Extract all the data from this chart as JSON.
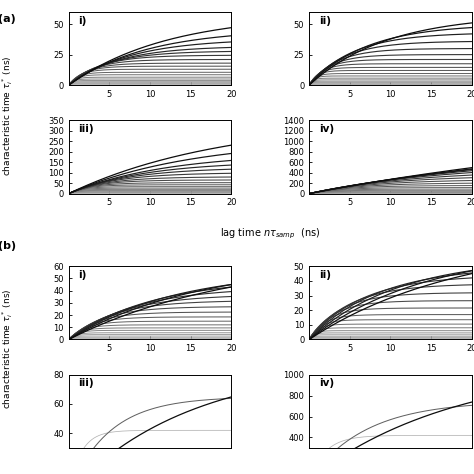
{
  "panel_a": {
    "subplots": [
      {
        "label": "i)",
        "ylim": [
          0,
          60
        ],
        "yticks": [
          0,
          25,
          50
        ],
        "show_xticks": true,
        "n_modes": 20,
        "amplitudes": [
          0.4,
          0.8,
          1.3,
          2.0,
          2.8,
          3.8,
          5.0,
          6.5,
          8.5,
          10.5,
          13.0,
          15.5,
          18.0,
          21.0,
          24.5,
          28.0,
          32.0,
          38.0,
          46.0,
          58.0
        ],
        "timescales": [
          0.15,
          0.18,
          0.22,
          0.28,
          0.35,
          0.45,
          0.55,
          0.7,
          0.9,
          1.1,
          1.4,
          1.8,
          2.3,
          2.9,
          3.7,
          4.8,
          6.0,
          7.5,
          9.5,
          12.0
        ]
      },
      {
        "label": "ii)",
        "ylim": [
          0,
          60
        ],
        "yticks": [
          0,
          25,
          50
        ],
        "show_xticks": true,
        "n_modes": 20,
        "amplitudes": [
          0.3,
          0.6,
          1.0,
          1.6,
          2.3,
          3.2,
          4.3,
          5.7,
          7.5,
          9.5,
          12.0,
          14.5,
          17.5,
          21.0,
          25.0,
          30.0,
          36.0,
          43.0,
          50.0,
          58.0
        ],
        "timescales": [
          0.08,
          0.1,
          0.13,
          0.16,
          0.21,
          0.27,
          0.35,
          0.45,
          0.58,
          0.75,
          0.95,
          1.2,
          1.55,
          2.0,
          2.6,
          3.3,
          4.2,
          5.4,
          7.0,
          9.5
        ]
      },
      {
        "label": "iii)",
        "ylim": [
          0,
          350
        ],
        "yticks": [
          0,
          50,
          100,
          150,
          200,
          250,
          300,
          350
        ],
        "show_xticks": true,
        "n_modes": 20,
        "amplitudes": [
          1.0,
          2.0,
          3.5,
          5.5,
          8.0,
          11.0,
          15.0,
          20.0,
          26.0,
          33.0,
          42.0,
          52.0,
          65.0,
          80.0,
          100.0,
          125.0,
          155.0,
          195.0,
          260.0,
          355.0
        ],
        "timescales": [
          0.2,
          0.25,
          0.32,
          0.4,
          0.5,
          0.65,
          0.82,
          1.05,
          1.35,
          1.7,
          2.2,
          2.8,
          3.6,
          4.6,
          5.8,
          7.5,
          9.5,
          12.0,
          15.0,
          19.0
        ]
      },
      {
        "label": "iv)",
        "ylim": [
          0,
          1400
        ],
        "yticks": [
          0,
          200,
          400,
          600,
          800,
          1000,
          1200,
          1400
        ],
        "show_xticks": true,
        "n_modes": 20,
        "amplitudes": [
          2.0,
          4.5,
          8.0,
          13.0,
          20.0,
          30.0,
          44.0,
          62.0,
          85.0,
          115.0,
          155.0,
          205.0,
          270.0,
          350.0,
          450.0,
          580.0,
          730.0,
          920.0,
          1150.0,
          1500.0
        ],
        "timescales": [
          0.3,
          0.4,
          0.55,
          0.72,
          0.95,
          1.25,
          1.65,
          2.1,
          2.8,
          3.6,
          4.7,
          6.0,
          7.8,
          10.0,
          13.0,
          17.0,
          22.0,
          29.0,
          38.0,
          50.0
        ]
      }
    ],
    "panel_label": "(a)",
    "ylabel": "characteristic time $\\tau_i^*$ (ns)"
  },
  "panel_b": {
    "subplots": [
      {
        "label": "i)",
        "ylim": [
          0,
          60
        ],
        "yticks": [
          0,
          10,
          20,
          30,
          40,
          50,
          60
        ],
        "show_xticks": true,
        "n_modes": 20,
        "amplitudes": [
          0.5,
          1.0,
          1.8,
          2.8,
          4.0,
          5.5,
          7.5,
          9.5,
          12.0,
          15.0,
          18.5,
          22.5,
          27.0,
          32.0,
          37.0,
          43.0,
          50.0,
          57.0,
          63.0,
          68.0
        ],
        "timescales": [
          0.2,
          0.28,
          0.37,
          0.48,
          0.62,
          0.8,
          1.02,
          1.3,
          1.65,
          2.1,
          2.65,
          3.35,
          4.2,
          5.3,
          6.6,
          8.2,
          10.2,
          12.8,
          16.0,
          20.0
        ]
      },
      {
        "label": "ii)",
        "ylim": [
          0,
          50
        ],
        "yticks": [
          0,
          10,
          20,
          30,
          40,
          50
        ],
        "show_xticks": true,
        "n_modes": 20,
        "amplitudes": [
          0.4,
          0.8,
          1.4,
          2.2,
          3.2,
          4.5,
          6.0,
          8.0,
          10.5,
          13.5,
          17.0,
          21.5,
          26.5,
          32.0,
          38.0,
          44.0,
          50.0,
          56.0,
          62.0,
          68.0
        ],
        "timescales": [
          0.12,
          0.16,
          0.21,
          0.27,
          0.36,
          0.47,
          0.61,
          0.79,
          1.02,
          1.33,
          1.73,
          2.25,
          2.93,
          3.82,
          4.96,
          6.45,
          8.38,
          10.9,
          14.2,
          18.5
        ]
      },
      {
        "label": "iii)",
        "ylim": [
          30,
          80
        ],
        "yticks": [
          40,
          60,
          80
        ],
        "show_xticks": false,
        "n_modes": 3,
        "amplitudes": [
          42.0,
          65.0,
          88.0
        ],
        "timescales": [
          1.5,
          5.0,
          15.0
        ]
      },
      {
        "label": "iv)",
        "ylim": [
          300,
          1000
        ],
        "yticks": [
          400,
          600,
          800,
          1000
        ],
        "show_xticks": false,
        "n_modes": 3,
        "amplitudes": [
          420.0,
          750.0,
          1100.0
        ],
        "timescales": [
          2.0,
          7.0,
          18.0
        ]
      }
    ],
    "panel_label": "(b)",
    "ylabel": "characteristic time $\\tau_i^*$ (ns)"
  },
  "xlabel": "lag time $n\\tau_{samp}$  (ns)",
  "n_points": 300,
  "xmax": 20.0,
  "xticks": [
    5,
    10,
    15,
    20
  ],
  "xlim": [
    0,
    20
  ]
}
